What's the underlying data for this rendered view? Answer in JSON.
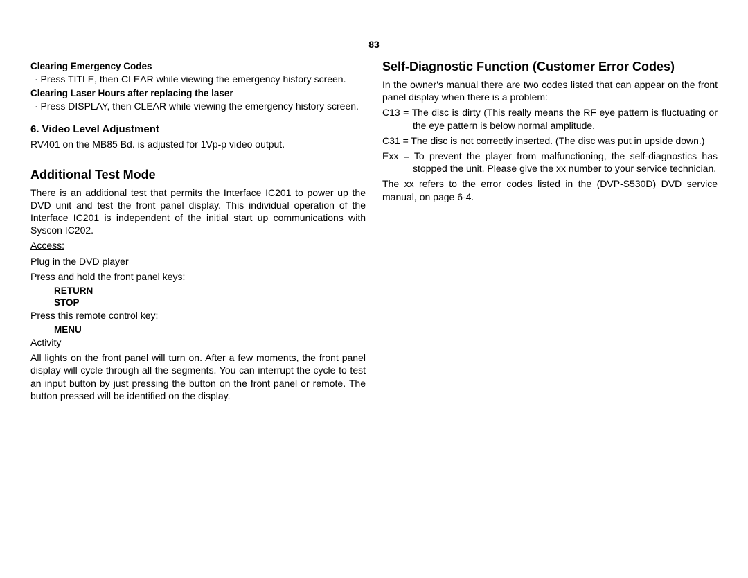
{
  "pageNumber": "83",
  "left": {
    "clearEmergency": {
      "heading": "Clearing Emergency Codes",
      "bullet": "·  Press TITLE, then CLEAR while viewing the emergency history screen."
    },
    "clearLaser": {
      "heading": "Clearing Laser Hours after replacing the laser",
      "bullet": "·  Press DISPLAY, then CLEAR while viewing the emergency history screen."
    },
    "videoLevel": {
      "heading": "6. Video Level Adjustment",
      "body": "RV401 on the MB85 Bd. is adjusted for 1Vp-p video output."
    },
    "additional": {
      "heading": "Additional Test Mode",
      "intro": "There is an additional test that permits the Interface IC201 to power up the DVD unit and test the front panel display.  This individual operation of the Interface IC201 is independent of the initial start up communications with Syscon IC202.",
      "accessLabel": "Access:",
      "access1": "Plug in the DVD player",
      "access2": "Press and hold the front panel keys:",
      "key1": "RETURN",
      "key2": "STOP",
      "access3": "Press this remote control key:",
      "key3": "MENU",
      "activityLabel": "Activity",
      "activity": "All lights on the front panel will turn on.  After a few moments, the front panel display will cycle through all the segments.  You can interrupt the cycle to test an input button by just pressing the button on the front panel or remote.  The button pressed will be identified on the display."
    }
  },
  "right": {
    "heading": "Self-Diagnostic Function (Customer Error Codes)",
    "intro": "In the owner's manual there are two codes listed that can appear on the front panel display when there is a problem:",
    "c13": "C13 = The disc is dirty (This really means the RF eye pattern is fluctuating or the eye pattern is below normal amplitude.",
    "c31": "C31 = The disc is not correctly inserted.  (The disc was put in upside down.)",
    "exx": "Exx = To prevent the player from malfunctioning, the self-diagnostics has stopped the unit.  Please give the xx number to your service technician.",
    "note": "The xx refers to the error codes listed in the (DVP-S530D) DVD service manual, on page 6-4."
  }
}
